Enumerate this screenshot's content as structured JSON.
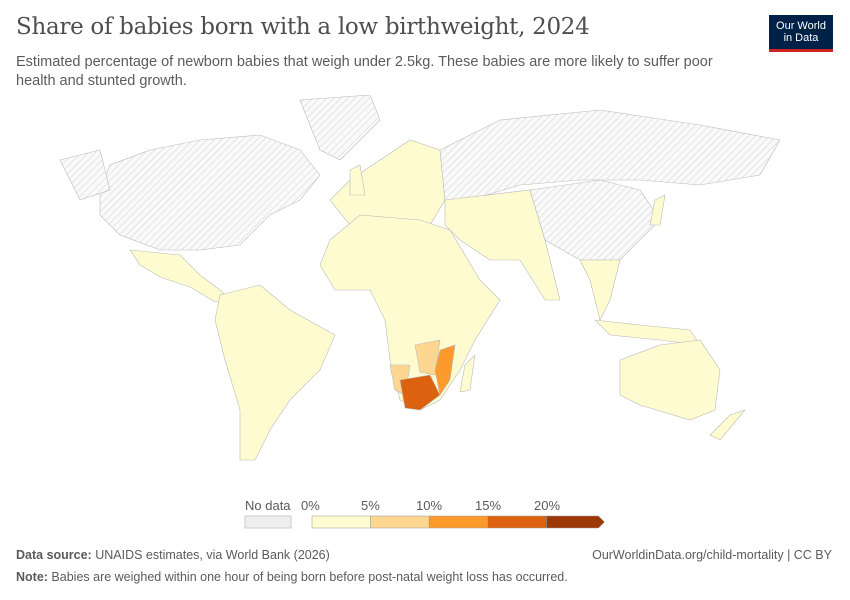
{
  "header": {
    "title": "Share of babies born with a low birthweight, 2024",
    "subtitle": "Estimated percentage of newborn babies that weigh under 2.5kg. These babies are more likely to suffer poor health and stunted growth.",
    "logo_line1": "Our World",
    "logo_line2": "in Data"
  },
  "legend": {
    "no_data": "No data",
    "ticks": [
      "0%",
      "5%",
      "10%",
      "15%",
      "20%"
    ],
    "bins": [
      "#fefbd0",
      "#fdd68f",
      "#fd9a2c",
      "#dd620f",
      "#9c3707"
    ],
    "no_data_color": "#e8e8e8"
  },
  "map": {
    "regions": [
      {
        "name": "north-america",
        "bin": -1
      },
      {
        "name": "alaska",
        "bin": -1
      },
      {
        "name": "greenland",
        "bin": -1
      },
      {
        "name": "mexico-central-america",
        "bin": 0
      },
      {
        "name": "south-america",
        "bin": 0
      },
      {
        "name": "europe",
        "bin": 0
      },
      {
        "name": "uk",
        "bin": 0
      },
      {
        "name": "russia",
        "bin": -1
      },
      {
        "name": "africa",
        "bin": 0
      },
      {
        "name": "madagascar",
        "bin": 0
      },
      {
        "name": "middle-east-south-asia",
        "bin": 0
      },
      {
        "name": "china",
        "bin": -1
      },
      {
        "name": "southeast-asia",
        "bin": 0
      },
      {
        "name": "japan",
        "bin": 0
      },
      {
        "name": "indonesia",
        "bin": 0
      },
      {
        "name": "australia",
        "bin": 0
      },
      {
        "name": "new-zealand",
        "bin": 0
      },
      {
        "name": "namibia",
        "bin": 1
      },
      {
        "name": "zambia-zimbabwe",
        "bin": 1
      },
      {
        "name": "mozambique",
        "bin": 2
      },
      {
        "name": "south-africa",
        "bin": 3
      }
    ]
  },
  "footer": {
    "source_label": "Data source:",
    "source": " UNAIDS estimates, via World Bank (2026)",
    "note_label": "Note:",
    "note": " Babies are weighed within one hour of being born before post-natal weight loss has occurred.",
    "url": "OurWorldinData.org/child-mortality | CC BY"
  }
}
